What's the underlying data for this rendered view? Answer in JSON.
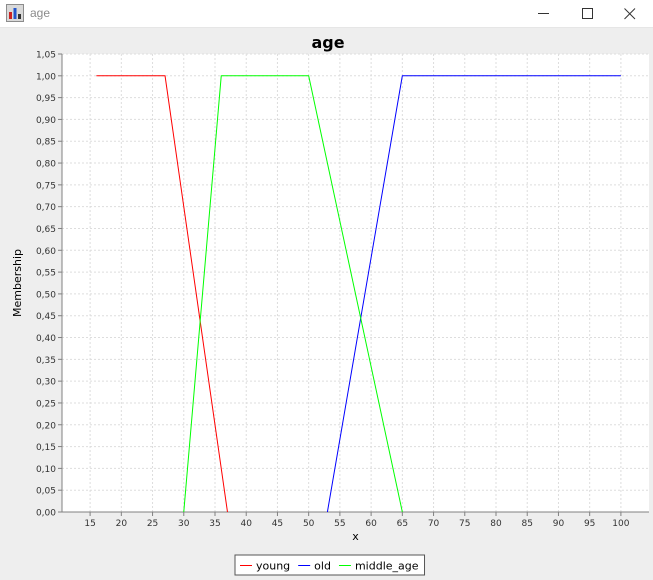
{
  "window": {
    "title": "age",
    "icons": {
      "app": "app-chart-icon",
      "minimize": "minimize-icon",
      "maximize": "maximize-icon",
      "close": "close-icon"
    }
  },
  "chart_data": {
    "type": "line",
    "title": "age",
    "xlabel": "x",
    "ylabel": "Membership",
    "xlim": [
      10.5,
      104.5
    ],
    "ylim": [
      0,
      1.05
    ],
    "xticks": [
      15,
      20,
      25,
      30,
      35,
      40,
      45,
      50,
      55,
      60,
      65,
      70,
      75,
      80,
      85,
      90,
      95,
      100
    ],
    "yticks": [
      "0,00",
      "0,05",
      "0,10",
      "0,15",
      "0,20",
      "0,25",
      "0,30",
      "0,35",
      "0,40",
      "0,45",
      "0,50",
      "0,55",
      "0,60",
      "0,65",
      "0,70",
      "0,75",
      "0,80",
      "0,85",
      "0,90",
      "0,95",
      "1,00",
      "1,05"
    ],
    "grid": true,
    "legend_position": "bottom",
    "series": [
      {
        "name": "young",
        "color": "#ff0000",
        "points": [
          [
            16,
            1.0
          ],
          [
            27,
            1.0
          ],
          [
            37,
            0.0
          ]
        ]
      },
      {
        "name": "old",
        "color": "#0000ff",
        "points": [
          [
            53,
            0.0
          ],
          [
            65,
            1.0
          ],
          [
            100,
            1.0
          ]
        ]
      },
      {
        "name": "middle_age",
        "color": "#00ff00",
        "points": [
          [
            30,
            0.0
          ],
          [
            36,
            1.0
          ],
          [
            50,
            1.0
          ],
          [
            65,
            0.0
          ]
        ]
      }
    ]
  }
}
